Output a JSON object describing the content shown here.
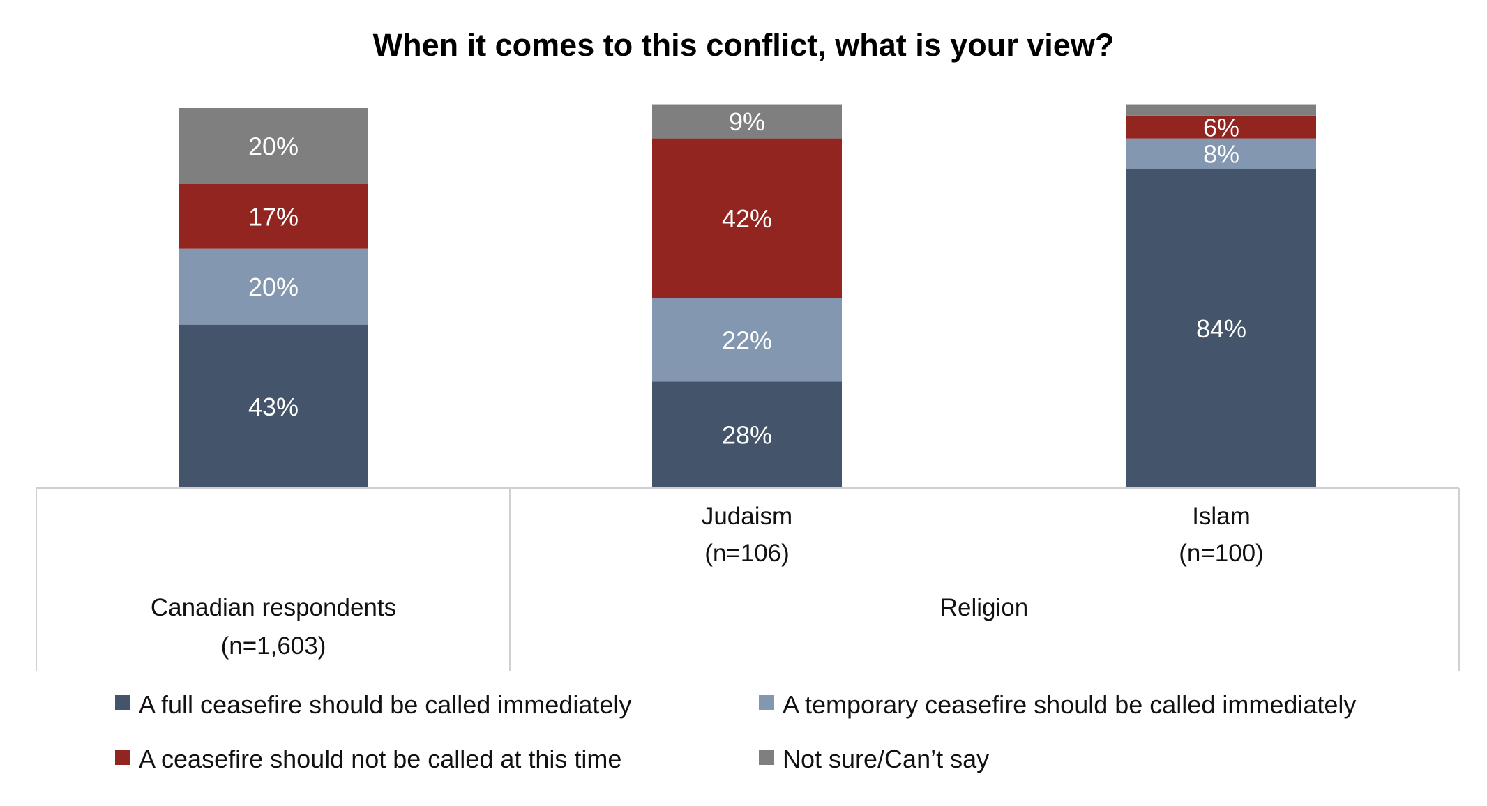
{
  "chart_data": {
    "type": "bar",
    "stacked": true,
    "title": "When it comes to this conflict, what is your view?",
    "categories": [
      "Canadian respondents (n=1,603)",
      "Judaism (n=106)",
      "Islam (n=100)"
    ],
    "category_labels": [
      {
        "line1": "Canadian respondents",
        "line2": "(n=1,603)"
      },
      {
        "line1": "Judaism",
        "line2": "(n=106)"
      },
      {
        "line1": "Islam",
        "line2": "(n=100)"
      }
    ],
    "groups": [
      {
        "label": "",
        "categories": [
          0
        ]
      },
      {
        "label": "Religion",
        "categories": [
          1,
          2
        ]
      }
    ],
    "series": [
      {
        "name": "A full ceasefire should be called immediately",
        "color": "#44546A",
        "values": [
          43,
          28,
          84
        ],
        "labels": [
          "43%",
          "28%",
          "84%"
        ]
      },
      {
        "name": "A temporary ceasefire should be called immediately",
        "color": "#8497B0",
        "values": [
          20,
          22,
          8
        ],
        "labels": [
          "20%",
          "22%",
          "8%"
        ]
      },
      {
        "name": "A ceasefire should not be called at this time",
        "color": "#922520",
        "values": [
          17,
          42,
          6
        ],
        "labels": [
          "17%",
          "42%",
          "6%"
        ]
      },
      {
        "name": "Not sure/Can’t say",
        "color": "#7F7F7F",
        "values": [
          20,
          9,
          3
        ],
        "labels": [
          "20%",
          "9%",
          ""
        ]
      }
    ],
    "ylim": [
      0,
      100
    ],
    "xlabel": "",
    "ylabel": "",
    "grid": false,
    "legend_position": "bottom"
  }
}
